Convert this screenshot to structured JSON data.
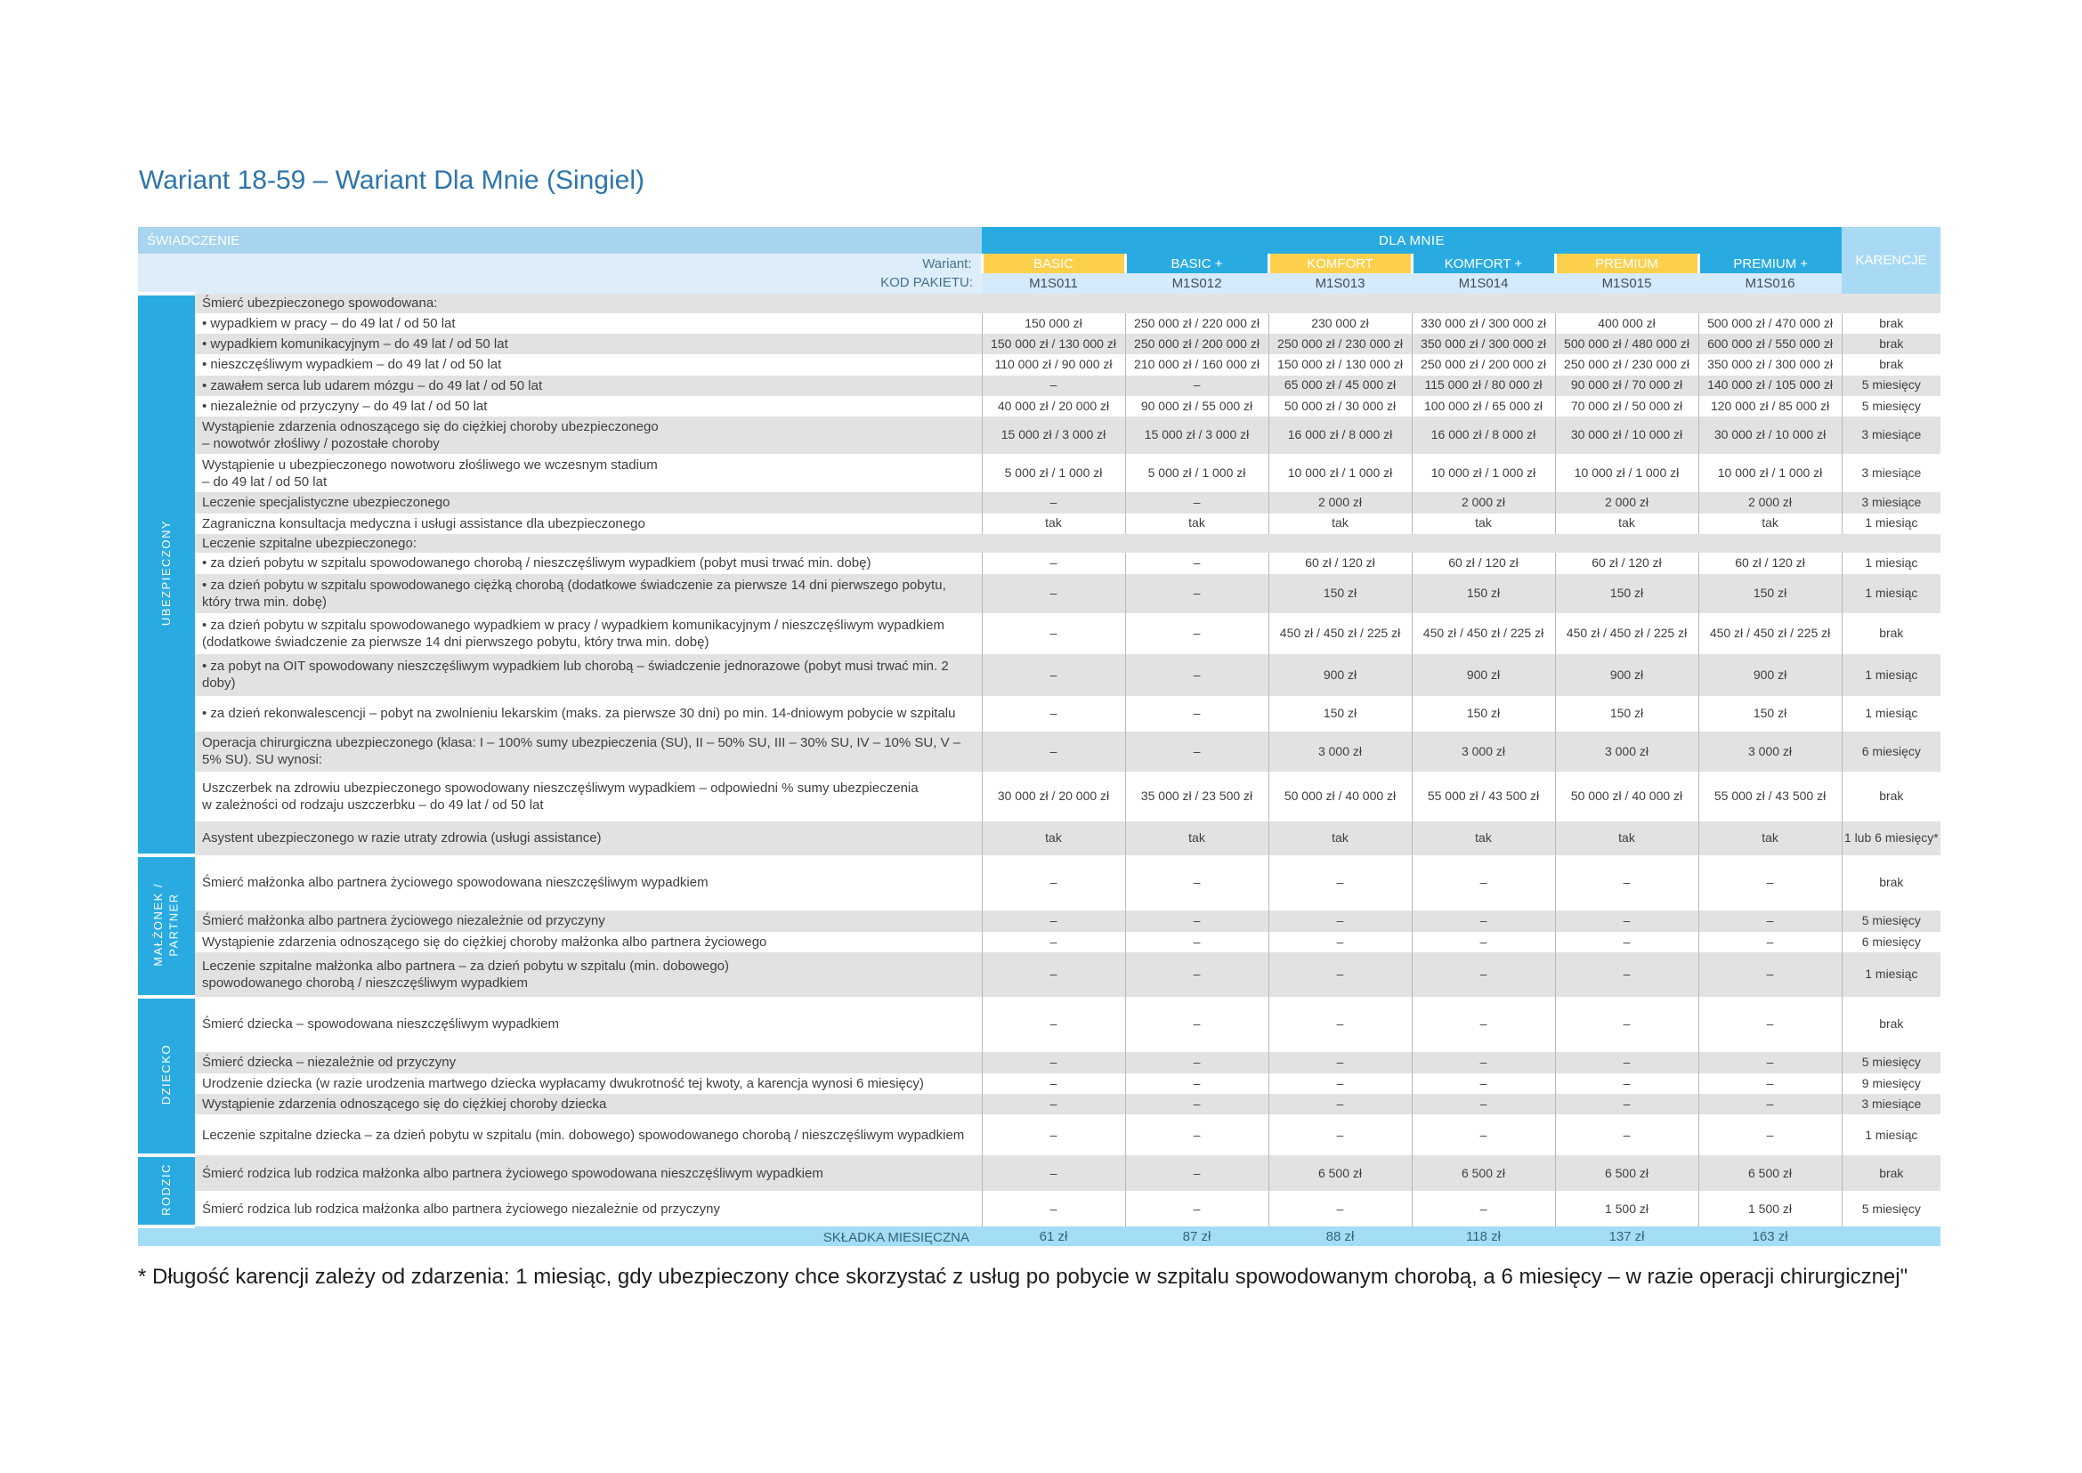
{
  "page": {
    "title": "Wariant 18-59 – Wariant Dla Mnie (Singiel)",
    "footnote": "* Długość karencji zależy od zdarzenia: 1 miesiąc, gdy ubezpieczony chce skorzystać z usług po pobycie w szpitalu spowodowanym chorobą, a 6 miesięcy – w razie operacji chirurgicznej\""
  },
  "colors": {
    "accent_cyan": "#29abe2",
    "accent_yellow": "#fcd04b",
    "title_blue": "#2e75a9",
    "header_light_blue": "#a7d4ef",
    "karencje_header_blue": "#a9daf5",
    "subheader_blue": "#ddeefa",
    "code_row_blue": "#d5eafa",
    "stripe_gray": "#e2e2e2",
    "premium_row_blue": "#a3ddf6",
    "premium_text": "#3a6478",
    "body_text": "#3f3f3f"
  },
  "table": {
    "header": {
      "benefit_label": "ŚWIADCZENIE",
      "group_label": "DLA MNIE",
      "karencje_label": "KARENCJE",
      "wariant_label": "Wariant:",
      "kod_label": "KOD PAKIETU:",
      "variants": [
        {
          "name": "BASIC",
          "code": "M1S011"
        },
        {
          "name": "BASIC +",
          "code": "M1S012"
        },
        {
          "name": "KOMFORT",
          "code": "M1S013"
        },
        {
          "name": "KOMFORT +",
          "code": "M1S014"
        },
        {
          "name": "PREMIUM",
          "code": "M1S015"
        },
        {
          "name": "PREMIUM +",
          "code": "M1S016"
        }
      ]
    },
    "footer": {
      "label": "SKŁADKA MIESIĘCZNA",
      "values": [
        "61 zł",
        "87 zł",
        "88 zł",
        "118 zł",
        "137 zł",
        "163 zł"
      ]
    },
    "sections": [
      {
        "label": "UBEZPIECZONY",
        "rows": [
          {
            "benefit": "Śmierć ubezpieczonego spowodowana:",
            "group": true,
            "h": 22
          },
          {
            "benefit": "•  wypadkiem w pracy – do 49 lat / od 50 lat",
            "values": [
              "150 000 zł",
              "250 000 zł / 220 000 zł",
              "230 000 zł",
              "330 000 zł / 300 000 zł",
              "400 000 zł",
              "500 000 zł / 470 000 zł"
            ],
            "karencja": "brak",
            "h": 21
          },
          {
            "benefit": "•  wypadkiem komunikacyjnym – do 49 lat / od 50 lat",
            "values": [
              "150 000 zł / 130 000 zł",
              "250 000 zł / 200 000 zł",
              "250 000 zł / 230 000 zł",
              "350 000 zł / 300 000 zł",
              "500 000 zł / 480 000 zł",
              "600 000 zł / 550 000 zł"
            ],
            "karencja": "brak",
            "h": 21
          },
          {
            "benefit": "•  nieszczęśliwym wypadkiem – do 49 lat / od 50 lat",
            "values": [
              "110 000 zł / 90 000 zł",
              "210 000 zł / 160 000 zł",
              "150 000 zł / 130 000 zł",
              "250 000 zł / 200 000 zł",
              "250 000 zł / 230 000 zł",
              "350 000 zł / 300 000 zł"
            ],
            "karencja": "brak",
            "h": 21
          },
          {
            "benefit": "•  zawałem serca lub udarem mózgu – do 49 lat / od 50 lat",
            "values": [
              "–",
              "–",
              "65 000 zł / 45 000 zł",
              "115 000 zł / 80 000 zł",
              "90 000 zł / 70 000 zł",
              "140 000 zł / 105 000 zł"
            ],
            "karencja": "5 miesięcy",
            "h": 21
          },
          {
            "benefit": "•  niezależnie od przyczyny – do 49 lat / od 50 lat",
            "values": [
              "40 000 zł / 20 000 zł",
              "90 000 zł / 55 000 zł",
              "50 000 zł / 30 000 zł",
              "100 000 zł / 65 000 zł",
              "70 000 zł / 50 000 zł",
              "120 000 zł / 85 000 zł"
            ],
            "karencja": "5 miesięcy",
            "h": 21
          },
          {
            "benefit": "Wystąpienie zdarzenia odnoszącego się do ciężkiej choroby ubezpieczonego\n– nowotwór złośliwy / pozostałe choroby",
            "values": [
              "15 000 zł / 3 000 zł",
              "15 000 zł / 3 000 zł",
              "16 000 zł / 8 000 zł",
              "16 000 zł / 8 000 zł",
              "30 000 zł / 10 000 zł",
              "30 000 zł / 10 000 zł"
            ],
            "karencja": "3 miesiące",
            "h": 42
          },
          {
            "benefit": "Wystąpienie u ubezpieczonego nowotworu złośliwego we wczesnym stadium\n– do 49 lat / od 50 lat",
            "values": [
              "5 000 zł / 1 000 zł",
              "5 000 zł / 1 000 zł",
              "10 000 zł / 1 000 zł",
              "10 000 zł / 1 000 zł",
              "10 000 zł / 1 000 zł",
              "10 000 zł / 1 000 zł"
            ],
            "karencja": "3 miesiące",
            "h": 43
          },
          {
            "benefit": "Leczenie specjalistyczne ubezpieczonego",
            "values": [
              "–",
              "–",
              "2 000 zł",
              "2 000 zł",
              "2 000 zł",
              "2 000 zł"
            ],
            "karencja": "3 miesiące",
            "h": 22
          },
          {
            "benefit": "Zagraniczna konsultacja medyczna i usługi assistance dla ubezpieczonego",
            "values": [
              "tak",
              "tak",
              "tak",
              "tak",
              "tak",
              "tak"
            ],
            "karencja": "1 miesiąc",
            "h": 21
          },
          {
            "benefit": "Leczenie szpitalne ubezpieczonego:",
            "group": true,
            "h": 20
          },
          {
            "benefit": "•  za dzień pobytu w szpitalu spowodowanego chorobą / nieszczęśliwym wypadkiem (pobyt musi trwać min. dobę)",
            "values": [
              "–",
              "–",
              "60 zł / 120 zł",
              "60 zł / 120 zł",
              "60 zł / 120 zł",
              "60 zł / 120 zł"
            ],
            "karencja": "1 miesiąc",
            "h": 24
          },
          {
            "benefit": "•  za dzień pobytu w szpitalu spowodowanego ciężką chorobą (dodatkowe świadczenie za pierwsze 14 dni pierwszego pobytu, który trwa min. dobę)",
            "values": [
              "–",
              "–",
              "150 zł",
              "150 zł",
              "150 zł",
              "150 zł"
            ],
            "karencja": "1 miesiąc",
            "h": 44
          },
          {
            "benefit": "•  za dzień pobytu w szpitalu spowodowanego wypadkiem w pracy / wypadkiem komunikacyjnym / nieszczęśliwym wypadkiem (dodatkowe świadczenie za pierwsze 14 dni pierwszego pobytu, który trwa min. dobę)",
            "values": [
              "–",
              "–",
              "450 zł / 450 zł / 225 zł",
              "450 zł / 450 zł / 225 zł",
              "450 zł / 450 zł / 225 zł",
              "450 zł / 450 zł / 225 zł"
            ],
            "karencja": "brak",
            "h": 46
          },
          {
            "benefit": "•  za pobyt na OIT spowodowany nieszczęśliwym wypadkiem lub chorobą – świadczenie jednorazowe (pobyt musi trwać min. 2 doby)",
            "values": [
              "–",
              "–",
              "900 zł",
              "900 zł",
              "900 zł",
              "900 zł"
            ],
            "karencja": "1 miesiąc",
            "h": 47
          },
          {
            "benefit": "•  za dzień rekonwalescencji – pobyt na zwolnieniu lekarskim (maks. za pierwsze 30 dni) po min. 14-dniowym pobycie w szpitalu",
            "values": [
              "–",
              "–",
              "150 zł",
              "150 zł",
              "150 zł",
              "150 zł"
            ],
            "karencja": "1 miesiąc",
            "h": 40
          },
          {
            "benefit": "Operacja chirurgiczna ubezpieczonego (klasa: I – 100% sumy ubezpieczenia (SU), II – 50% SU, III – 30% SU,  IV – 10% SU, V – 5% SU). SU wynosi:",
            "values": [
              "–",
              "–",
              "3 000 zł",
              "3 000 zł",
              "3 000 zł",
              "3 000 zł"
            ],
            "karencja": "6 miesięcy",
            "h": 45
          },
          {
            "benefit": "Uszczerbek na zdrowiu ubezpieczonego spowodowany nieszczęśliwym wypadkiem – odpowiedni % sumy ubezpieczenia\nw zależności od rodzaju uszczerbku – do 49 lat / od 50 lat",
            "values": [
              "30 000 zł / 20 000 zł",
              "35 000 zł / 23 500 zł",
              "50 000 zł / 40 000 zł",
              "55 000 zł / 43 500 zł",
              "50 000 zł / 40 000 zł",
              "55 000 zł / 43 500 zł"
            ],
            "karencja": "brak",
            "h": 56
          },
          {
            "benefit": "Asystent ubezpieczonego w razie utraty zdrowia (usługi assistance)",
            "values": [
              "tak",
              "tak",
              "tak",
              "tak",
              "tak",
              "tak"
            ],
            "karencja": "1 lub 6 miesięcy*",
            "h": 38
          }
        ]
      },
      {
        "label": "MAŁŻONEK /\nPARTNER",
        "rows": [
          {
            "benefit": "Śmierć małżonka albo partnera życiowego spowodowana nieszczęśliwym wypadkiem",
            "values": [
              "–",
              "–",
              "–",
              "–",
              "–",
              "–"
            ],
            "karencja": "brak",
            "h": 62
          },
          {
            "benefit": "Śmierć małżonka albo partnera życiowego niezależnie od przyczyny",
            "values": [
              "–",
              "–",
              "–",
              "–",
              "–",
              "–"
            ],
            "karencja": "5 miesięcy",
            "h": 24
          },
          {
            "benefit": "Wystąpienie zdarzenia odnoszącego się do ciężkiej choroby małżonka albo partnera życiowego",
            "values": [
              "–",
              "–",
              "–",
              "–",
              "–",
              "–"
            ],
            "karencja": "6 miesięcy",
            "h": 22
          },
          {
            "benefit": "Leczenie szpitalne małżonka albo partnera – za dzień pobytu w szpitalu (min. dobowego)\nspowodowanego chorobą / nieszczęśliwym wypadkiem",
            "values": [
              "–",
              "–",
              "–",
              "–",
              "–",
              "–"
            ],
            "karencja": "1 miesiąc",
            "h": 50
          }
        ]
      },
      {
        "label": "DZIECKO",
        "rows": [
          {
            "benefit": "Śmierć dziecka – spowodowana nieszczęśliwym wypadkiem",
            "values": [
              "–",
              "–",
              "–",
              "–",
              "–",
              "–"
            ],
            "karencja": "brak",
            "h": 62
          },
          {
            "benefit": "Śmierć dziecka – niezależnie od przyczyny",
            "values": [
              "–",
              "–",
              "–",
              "–",
              "–",
              "–"
            ],
            "karencja": "5 miesięcy",
            "h": 24
          },
          {
            "benefit": "Urodzenie dziecka (w razie urodzenia martwego dziecka wypłacamy dwukrotność tej kwoty, a karencja wynosi 6 miesięcy)",
            "values": [
              "–",
              "–",
              "–",
              "–",
              "–",
              "–"
            ],
            "karencja": "9 miesięcy",
            "h": 22
          },
          {
            "benefit": "Wystąpienie zdarzenia odnoszącego się do ciężkiej choroby dziecka",
            "values": [
              "–",
              "–",
              "–",
              "–",
              "–",
              "–"
            ],
            "karencja": "3 miesiące",
            "h": 22
          },
          {
            "benefit": "Leczenie szpitalne dziecka – za dzień pobytu w szpitalu (min. dobowego) spowodowanego chorobą / nieszczęśliwym wypadkiem",
            "values": [
              "–",
              "–",
              "–",
              "–",
              "–",
              "–"
            ],
            "karencja": "1 miesiąc",
            "h": 46
          }
        ]
      },
      {
        "label": "RODZIC",
        "rows": [
          {
            "benefit": "Śmierć rodzica lub rodzica małżonka albo partnera życiowego spowodowana nieszczęśliwym wypadkiem",
            "values": [
              "–",
              "–",
              "6 500 zł",
              "6 500 zł",
              "6 500 zł",
              "6 500 zł"
            ],
            "karencja": "brak",
            "h": 40
          },
          {
            "benefit": "Śmierć rodzica lub rodzica małżonka albo partnera życiowego niezależnie od przyczyny",
            "values": [
              "–",
              "–",
              "–",
              "–",
              "1 500 zł",
              "1 500 zł"
            ],
            "karencja": "5 miesięcy",
            "h": 40
          }
        ]
      }
    ]
  }
}
